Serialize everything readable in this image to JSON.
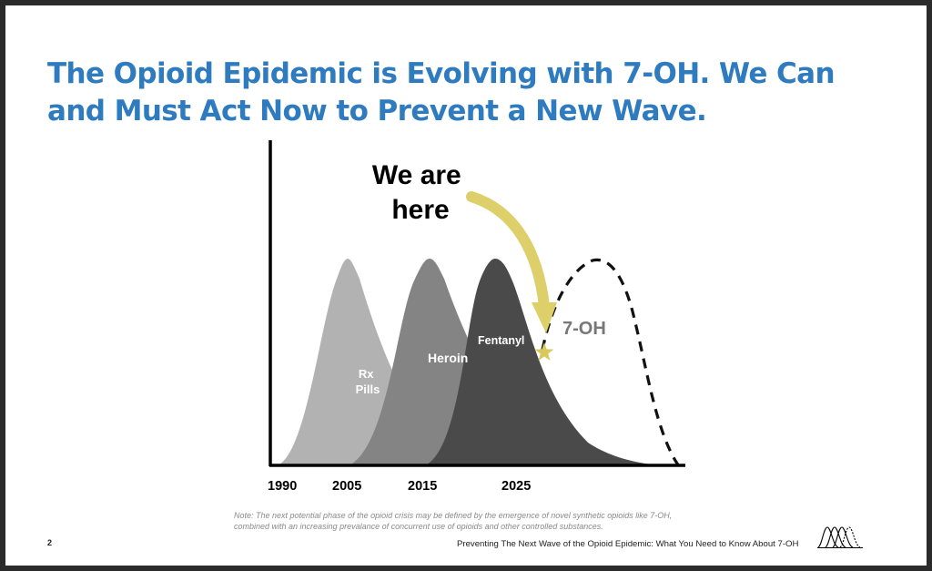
{
  "slide": {
    "title": "The Opioid Epidemic is Evolving with 7-OH. We Can and Must Act Now to Prevent a New Wave.",
    "note": "Note: The next potential phase of the opioid crisis may be defined by the emergence of novel synthetic opioids like 7-OH, combined with an increasing prevalance of concurrent use of opioids and other controlled substances.",
    "page_number": "2",
    "footer": "Preventing The Next Wave of the Opioid Epidemic: What You Need to Know About 7-OH"
  },
  "chart_data": {
    "type": "area",
    "x_ticks": [
      "1990",
      "2005",
      "2015",
      "2025"
    ],
    "annotation": "We are here",
    "colors": {
      "rx": "#b2b2b2",
      "heroin": "#848484",
      "fentanyl": "#4a4a4a",
      "arrow": "#ddd06a",
      "star": "#d9c95c",
      "next_wave": "#111111",
      "next_wave_label": "#777777"
    },
    "series": [
      {
        "name": "Rx Pills",
        "style": "filled",
        "peak_year": 2007
      },
      {
        "name": "Heroin",
        "style": "filled",
        "peak_year": 2016
      },
      {
        "name": "Fentanyl",
        "style": "filled",
        "peak_year": 2021
      },
      {
        "name": "7-OH",
        "style": "dashed",
        "peak_year": 2033
      }
    ],
    "current_marker_year": 2028
  }
}
